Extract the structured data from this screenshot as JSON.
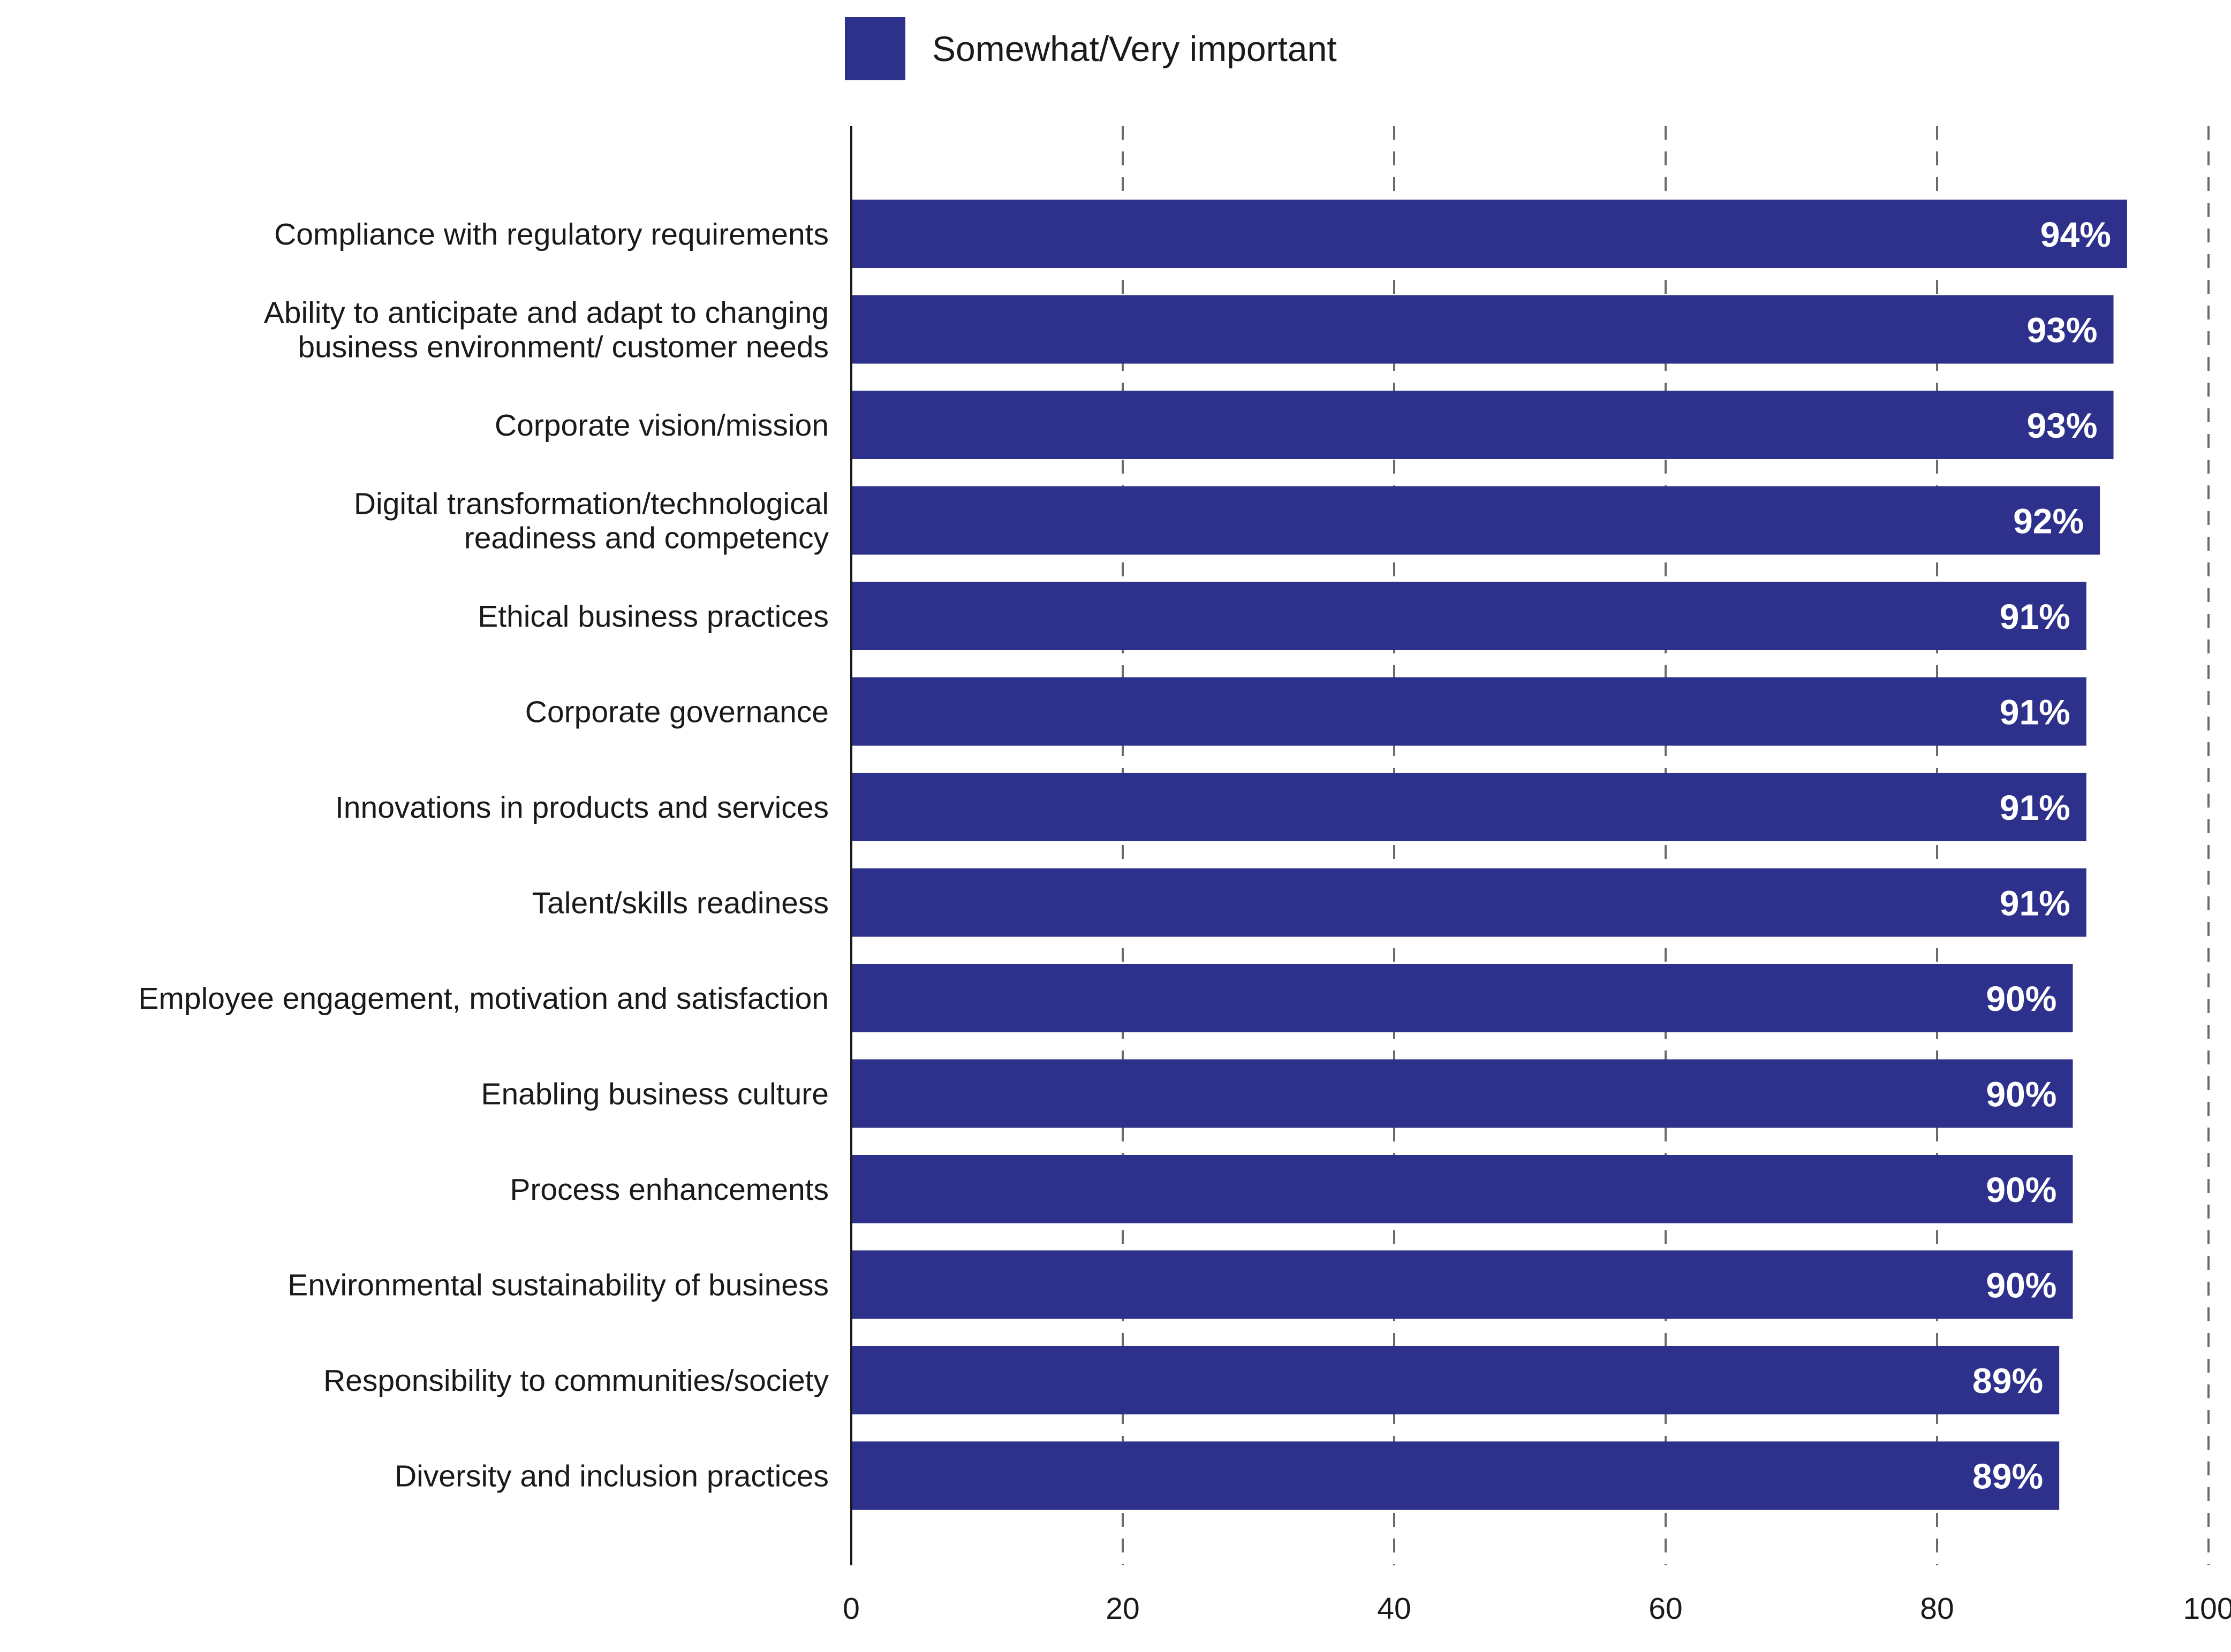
{
  "legend": {
    "label": "Somewhat/Very important",
    "color": "#2e318b"
  },
  "chart_data": {
    "type": "bar",
    "orientation": "horizontal",
    "categories": [
      "Compliance with regulatory requirements",
      "Ability to anticipate and adapt to changing business environment/ customer needs",
      "Corporate vision/mission",
      "Digital transformation/technological readiness and competency",
      "Ethical business practices",
      "Corporate governance",
      "Innovations in products and services",
      "Talent/skills readiness",
      "Employee engagement, motivation and satisfaction",
      "Enabling business culture",
      "Process enhancements",
      "Environmental sustainability of business",
      "Responsibility to communities/society",
      "Diversity and inclusion practices"
    ],
    "category_lines": [
      [
        "Compliance with regulatory requirements"
      ],
      [
        "Ability to anticipate and adapt to changing",
        "business environment/ customer needs"
      ],
      [
        "Corporate vision/mission"
      ],
      [
        "Digital transformation/technological",
        "readiness and competency"
      ],
      [
        "Ethical business practices"
      ],
      [
        "Corporate governance"
      ],
      [
        "Innovations in products and services"
      ],
      [
        "Talent/skills readiness"
      ],
      [
        "Employee engagement, motivation and satisfaction"
      ],
      [
        "Enabling business culture"
      ],
      [
        "Process enhancements"
      ],
      [
        "Environmental sustainability of business"
      ],
      [
        "Responsibility to communities/society"
      ],
      [
        "Diversity and inclusion practices"
      ]
    ],
    "series": [
      {
        "name": "Somewhat/Very important",
        "color": "#2e318b",
        "values": [
          94,
          93,
          93,
          92,
          91,
          91,
          91,
          91,
          90,
          90,
          90,
          90,
          89,
          89
        ],
        "labels": [
          "94%",
          "93%",
          "93%",
          "92%",
          "91%",
          "91%",
          "91%",
          "91%",
          "90%",
          "90%",
          "90%",
          "90%",
          "89%",
          "89%"
        ]
      }
    ],
    "xlim": [
      0,
      100
    ],
    "xticks": [
      0,
      20,
      40,
      60,
      80,
      100
    ],
    "grid": "vertical dashed",
    "legend_position": "top"
  }
}
